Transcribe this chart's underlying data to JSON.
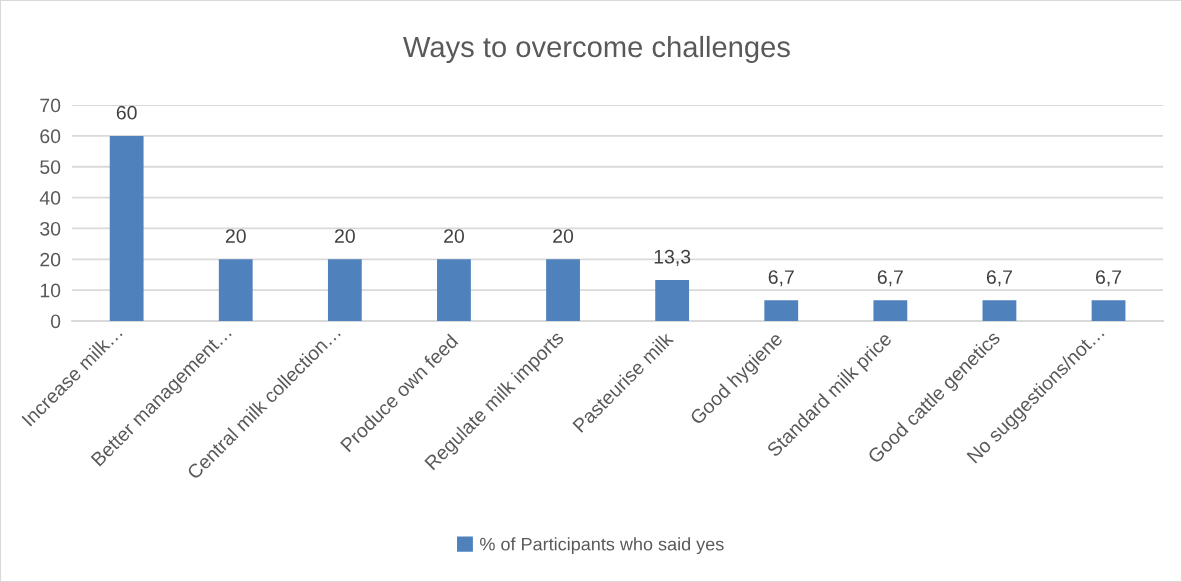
{
  "chart_data": {
    "type": "bar",
    "title": "Ways to overcome challenges",
    "categories": [
      "Increase milk…",
      "Better management…",
      "Central milk collection…",
      "Produce own feed",
      "Regulate milk imports",
      "Pasteurise milk",
      "Good hygiene",
      "Standard milk price",
      "Good cattle genetics",
      "No suggestions/not…"
    ],
    "series": [
      {
        "name": "% of Participants who said yes",
        "color": "#4f81bd",
        "values": [
          60,
          20,
          20,
          20,
          20,
          13.3,
          6.7,
          6.7,
          6.7,
          6.7
        ],
        "value_labels": [
          "60",
          "20",
          "20",
          "20",
          "20",
          "13,3",
          "6,7",
          "6,7",
          "6,7",
          "6,7"
        ]
      }
    ],
    "ylim": [
      0,
      70
    ],
    "yticks": [
      0,
      10,
      20,
      30,
      40,
      50,
      60,
      70
    ],
    "grid": "y",
    "legend": "bottom"
  }
}
